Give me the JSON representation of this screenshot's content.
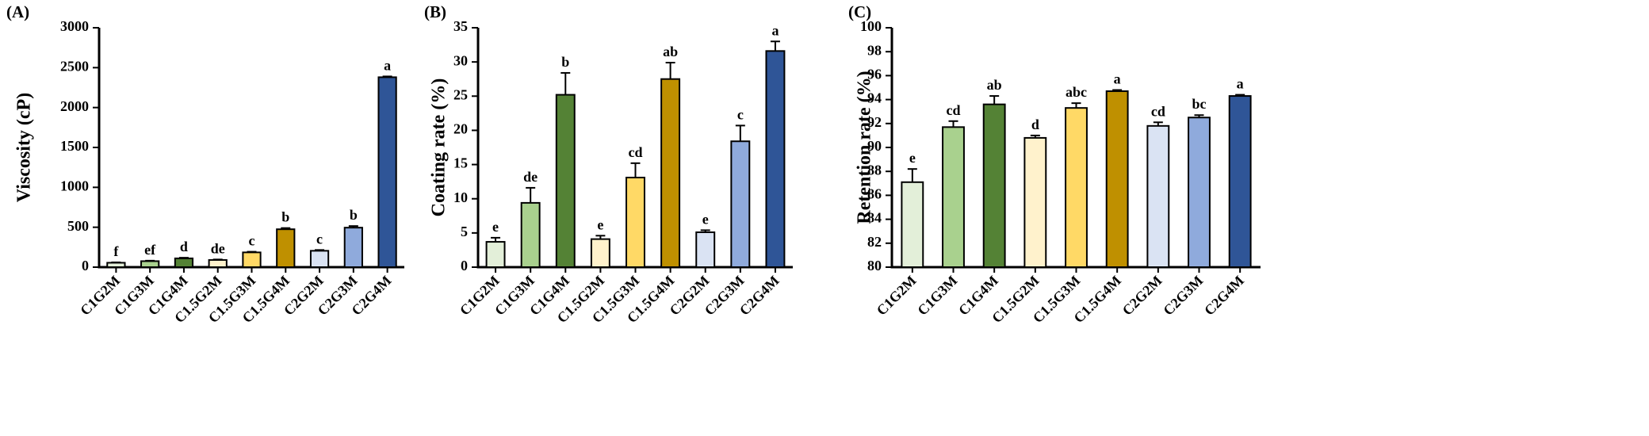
{
  "chart_data": [
    {
      "panel_label": "(A)",
      "type": "bar",
      "ylabel": "Viscosity (cP)",
      "xlabel": "",
      "ylim": [
        0,
        3000
      ],
      "yticks": [
        0,
        500,
        1000,
        1500,
        2000,
        2500,
        3000
      ],
      "categories": [
        "C1G2M",
        "C1G3M",
        "C1G4M",
        "C1.5G2M",
        "C1.5G3M",
        "C1.5G4M",
        "C2G2M",
        "C2G3M",
        "C2G4M"
      ],
      "values": [
        55,
        75,
        110,
        90,
        185,
        475,
        205,
        495,
        2380
      ],
      "errors": [
        5,
        6,
        8,
        6,
        8,
        15,
        10,
        20,
        10
      ],
      "letters": [
        "f",
        "ef",
        "d",
        "de",
        "c",
        "b",
        "c",
        "b",
        "a"
      ],
      "colors": [
        "#e3efd9",
        "#a9d18e",
        "#548235",
        "#fff2cc",
        "#ffd966",
        "#bf9000",
        "#dae3f3",
        "#8faadc",
        "#2f5597"
      ],
      "grid": false
    },
    {
      "panel_label": "(B)",
      "type": "bar",
      "ylabel": "Coating rate (%)",
      "xlabel": "",
      "ylim": [
        0,
        35
      ],
      "yticks": [
        0,
        5,
        10,
        15,
        20,
        25,
        30,
        35
      ],
      "categories": [
        "C1G2M",
        "C1G3M",
        "C1G4M",
        "C1.5G2M",
        "C1.5G3M",
        "C1.5G4M",
        "C2G2M",
        "C2G3M",
        "C2G4M"
      ],
      "values": [
        3.7,
        9.4,
        25.2,
        4.1,
        13.1,
        27.5,
        5.1,
        18.4,
        31.6
      ],
      "errors": [
        0.6,
        2.2,
        3.2,
        0.5,
        2.1,
        2.4,
        0.3,
        2.3,
        1.4
      ],
      "letters": [
        "e",
        "de",
        "b",
        "e",
        "cd",
        "ab",
        "e",
        "c",
        "a"
      ],
      "colors": [
        "#e3efd9",
        "#a9d18e",
        "#548235",
        "#fff2cc",
        "#ffd966",
        "#bf9000",
        "#dae3f3",
        "#8faadc",
        "#2f5597"
      ],
      "grid": false
    },
    {
      "panel_label": "(C)",
      "type": "bar",
      "ylabel": "Retention rate (%)",
      "xlabel": "",
      "ylim": [
        80,
        100
      ],
      "yticks": [
        80,
        82,
        84,
        86,
        88,
        90,
        92,
        94,
        96,
        98,
        100
      ],
      "categories": [
        "C1G2M",
        "C1G3M",
        "C1G4M",
        "C1.5G2M",
        "C1.5G3M",
        "C1.5G4M",
        "C2G2M",
        "C2G3M",
        "C2G4M"
      ],
      "values": [
        87.1,
        91.7,
        93.6,
        90.8,
        93.3,
        94.7,
        91.8,
        92.5,
        94.3
      ],
      "errors": [
        1.1,
        0.5,
        0.7,
        0.2,
        0.4,
        0.1,
        0.3,
        0.2,
        0.1
      ],
      "letters": [
        "e",
        "cd",
        "ab",
        "d",
        "abc",
        "a",
        "cd",
        "bc",
        "a"
      ],
      "colors": [
        "#e3efd9",
        "#a9d18e",
        "#548235",
        "#fff2cc",
        "#ffd966",
        "#bf9000",
        "#dae3f3",
        "#8faadc",
        "#2f5597"
      ],
      "grid": false
    }
  ]
}
